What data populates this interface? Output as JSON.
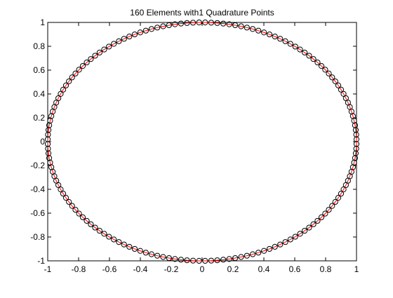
{
  "chart_data": {
    "type": "scatter",
    "title": "160 Elements with1 Quadrature Points",
    "xlabel": "",
    "ylabel": "",
    "xlim": [
      -1,
      1
    ],
    "ylim": [
      -1,
      1
    ],
    "grid": false,
    "x_ticks": [
      "-1",
      "-0.8",
      "-0.6",
      "-0.4",
      "-0.2",
      "0",
      "0.2",
      "0.4",
      "0.6",
      "0.8",
      "1"
    ],
    "y_ticks": [
      "-1",
      "-0.8",
      "-0.6",
      "-0.4",
      "-0.2",
      "0",
      "0.2",
      "0.4",
      "0.6",
      "0.8",
      "1"
    ],
    "series": [
      {
        "kind": "line",
        "shape": "unit circle",
        "color": "#ff0000",
        "points": 160,
        "radius": 1
      },
      {
        "kind": "markers",
        "marker": "open-circle",
        "color": "#000000",
        "points": 160,
        "radius": 1
      }
    ]
  }
}
